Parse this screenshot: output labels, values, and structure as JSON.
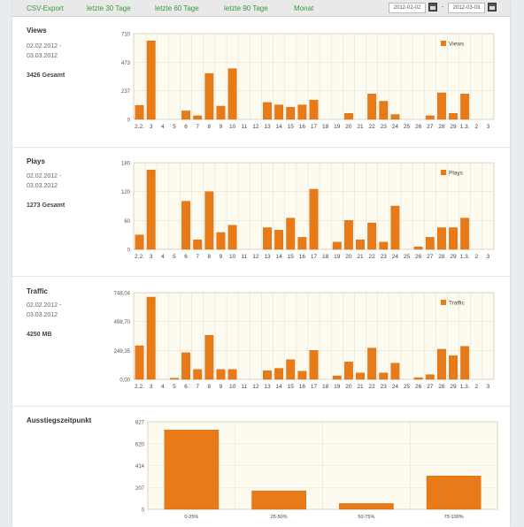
{
  "toolbar": {
    "links": [
      "CSV-Export",
      "letzte 30 Tage",
      "letzte 60 Tage",
      "letzte 90 Tage",
      "Monat"
    ],
    "date_from": "2012-02-02",
    "date_separator": "-",
    "date_to": "2012-03-03",
    "calendar_icon": "calendar-icon",
    "link_color": "#3a9a3a"
  },
  "colors": {
    "bar": "#e87b18",
    "bar_edge": "#c9650e",
    "plot_bg": "#fdfbf0",
    "grid": "#e6e2d0"
  },
  "sections": [
    {
      "title": "Views",
      "range_from": "02.02.2012 -",
      "range_to": "03.03.2012",
      "total": "3426 Gesamt"
    },
    {
      "title": "Plays",
      "range_from": "02.02.2012 -",
      "range_to": "03.03.2012",
      "total": "1273 Gesamt"
    },
    {
      "title": "Traffic",
      "range_from": "02.02.2012 -",
      "range_to": "03.03.2012",
      "total": "4250 MB"
    },
    {
      "title": "Ausstiegszeitpunkt",
      "range_from": "",
      "range_to": "",
      "total": ""
    }
  ],
  "chart_data": [
    {
      "type": "bar",
      "categories": [
        "2.2.",
        "3",
        "4",
        "5",
        "6",
        "7",
        "8",
        "9",
        "10",
        "11",
        "12",
        "13",
        "14",
        "15",
        "16",
        "17",
        "18",
        "19",
        "20",
        "21",
        "22",
        "23",
        "24",
        "25",
        "26",
        "27",
        "28",
        "29",
        "1.3.",
        "2",
        "3"
      ],
      "series": [
        {
          "name": "Views",
          "values": [
            115,
            650,
            0,
            0,
            70,
            30,
            380,
            110,
            420,
            0,
            0,
            140,
            120,
            100,
            120,
            160,
            0,
            0,
            50,
            0,
            210,
            150,
            40,
            0,
            0,
            30,
            220,
            50,
            210,
            0,
            0
          ]
        }
      ],
      "yticks": [
        "0",
        "237",
        "473",
        "710"
      ],
      "ylim": [
        0,
        710
      ],
      "legend": "top-right",
      "grid": true
    },
    {
      "type": "bar",
      "categories": [
        "2.2.",
        "3",
        "4",
        "5",
        "6",
        "7",
        "8",
        "9",
        "10",
        "11",
        "12",
        "13",
        "14",
        "15",
        "16",
        "17",
        "18",
        "19",
        "20",
        "21",
        "22",
        "23",
        "24",
        "25",
        "26",
        "27",
        "28",
        "29",
        "1.3.",
        "2",
        "3"
      ],
      "series": [
        {
          "name": "Plays",
          "values": [
            30,
            165,
            0,
            0,
            100,
            20,
            120,
            35,
            50,
            0,
            0,
            45,
            40,
            65,
            25,
            125,
            0,
            15,
            60,
            20,
            55,
            15,
            90,
            0,
            5,
            25,
            45,
            45,
            65,
            0,
            0
          ]
        }
      ],
      "yticks": [
        "0",
        "60",
        "120",
        "180"
      ],
      "ylim": [
        0,
        180
      ],
      "legend": "top-right",
      "grid": true
    },
    {
      "type": "bar",
      "categories": [
        "2.2.",
        "3",
        "4",
        "5",
        "6",
        "7",
        "8",
        "9",
        "10",
        "11",
        "12",
        "13",
        "14",
        "15",
        "16",
        "17",
        "18",
        "19",
        "20",
        "21",
        "22",
        "23",
        "24",
        "25",
        "26",
        "27",
        "28",
        "29",
        "1.3.",
        "2",
        "3"
      ],
      "series": [
        {
          "name": "Traffic",
          "values": [
            290,
            710,
            0,
            10,
            230,
            85,
            380,
            85,
            85,
            0,
            0,
            75,
            95,
            170,
            70,
            250,
            0,
            30,
            150,
            55,
            270,
            55,
            140,
            0,
            15,
            40,
            260,
            205,
            285,
            0,
            0
          ]
        }
      ],
      "yticks": [
        "0,00",
        "249,35",
        "498,70",
        "748,04"
      ],
      "ylim": [
        0,
        748.04
      ],
      "legend": "top-right",
      "grid": true
    },
    {
      "type": "bar",
      "categories": [
        "0-25%",
        "25-50%",
        "50-75%",
        "75-100%"
      ],
      "values": [
        750,
        175,
        55,
        315
      ],
      "yticks": [
        "0",
        "207",
        "414",
        "620",
        "827"
      ],
      "ylim": [
        0,
        827
      ],
      "grid": true
    }
  ]
}
